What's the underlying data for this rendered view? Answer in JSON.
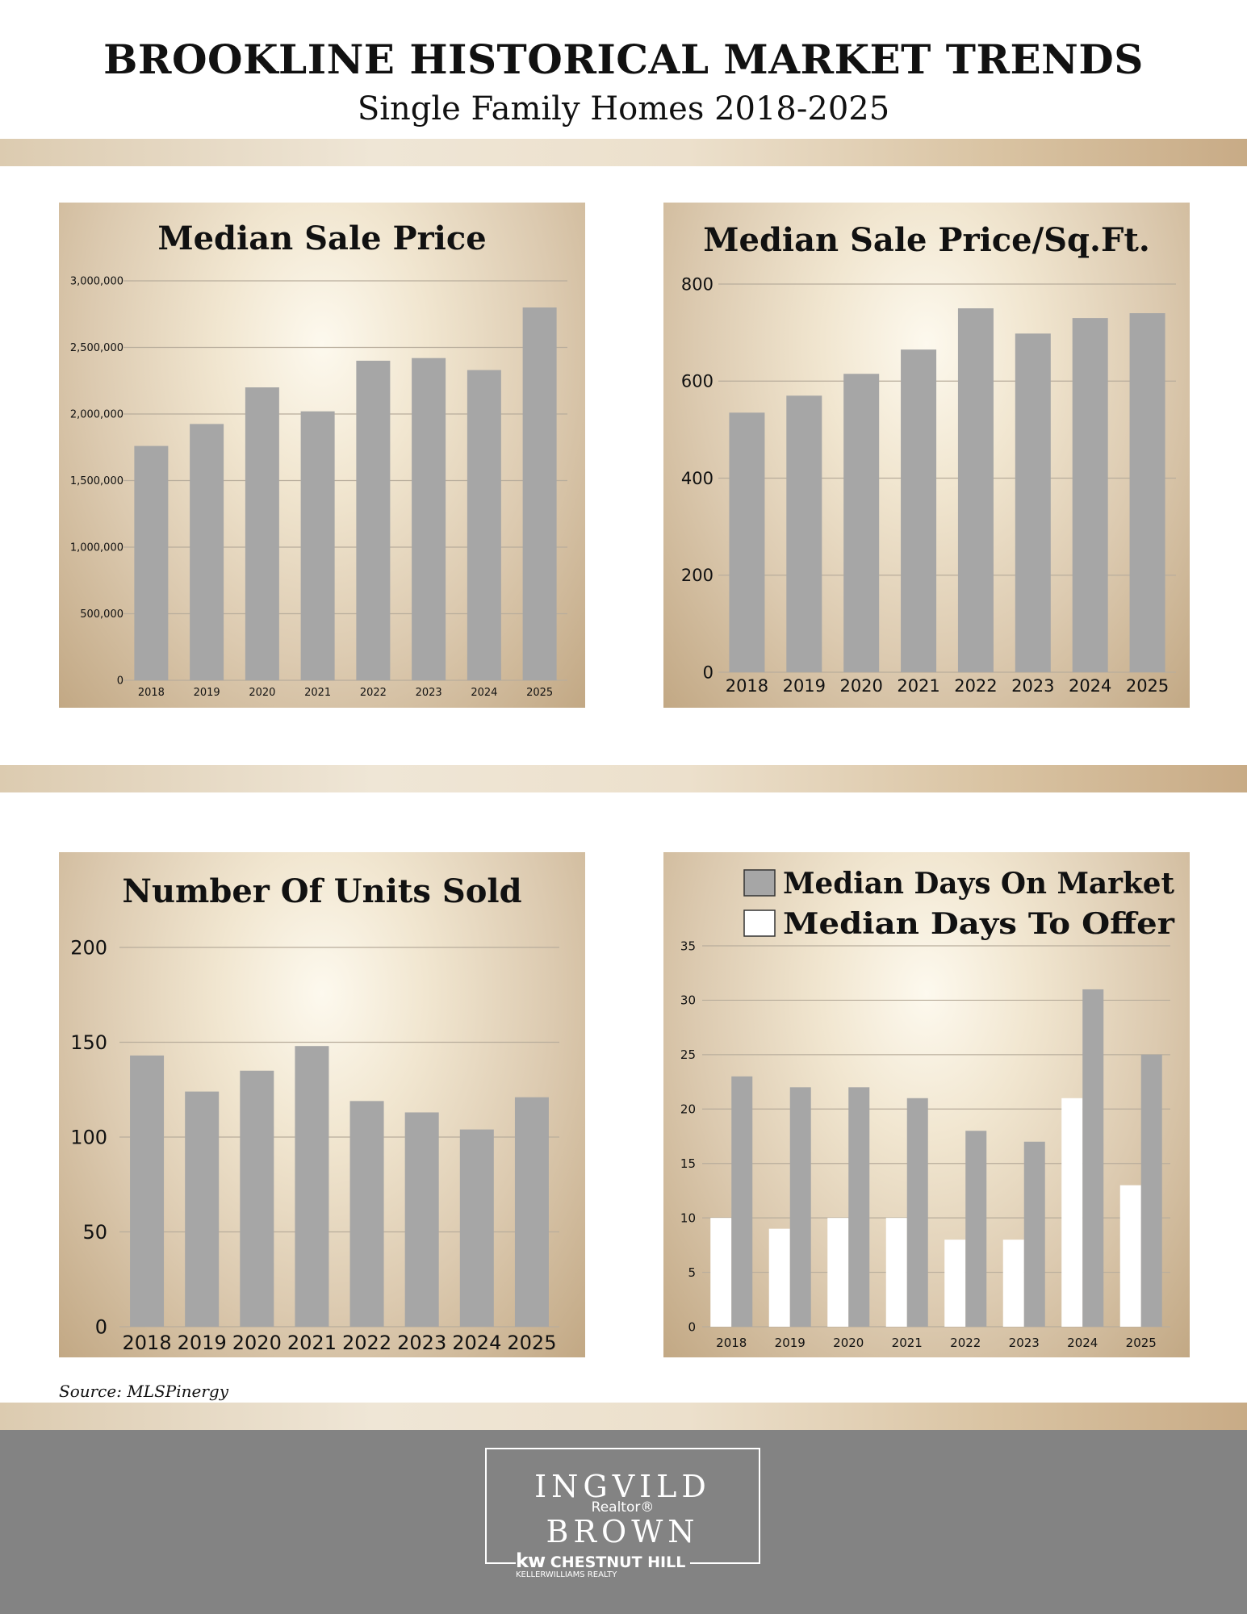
{
  "header": {
    "title": "BROOKLINE HISTORICAL MARKET TRENDS",
    "subtitle": "Single Family Homes 2018-2025"
  },
  "source": "Source:  MLSPinergy",
  "branding": {
    "name_line1": "INGVILD",
    "role": "Realtor®",
    "name_line2": "BROWN",
    "office": "CHESTNUT HILL",
    "office_prefix": "kw",
    "company": "KELLERWILLIAMS REALTY"
  },
  "colors": {
    "bar_gray": "#a6a6a6",
    "bar_white": "#ffffff",
    "grid": "#b8ad9c",
    "footer": "#838383"
  },
  "chart_data": [
    {
      "id": "median-sale-price",
      "type": "bar",
      "title": "Median Sale Price",
      "categories": [
        "2018",
        "2019",
        "2020",
        "2021",
        "2022",
        "2023",
        "2024",
        "2025"
      ],
      "series": [
        {
          "values": [
            1760000,
            1925000,
            2200000,
            2020000,
            2400000,
            2420000,
            2330000,
            2800000
          ],
          "color": "#a6a6a6"
        }
      ],
      "ylim": [
        0,
        3000000
      ],
      "yticks": [
        "0",
        "500,000",
        "1,000,000",
        "1,500,000",
        "2,000,000",
        "2,500,000",
        "3,000,000"
      ],
      "ytick_values": [
        0,
        500000,
        1000000,
        1500000,
        2000000,
        2500000,
        3000000
      ],
      "grid": true,
      "legend": []
    },
    {
      "id": "median-price-sqft",
      "type": "bar",
      "title": "Median Sale Price/Sq.Ft.",
      "categories": [
        "2018",
        "2019",
        "2020",
        "2021",
        "2022",
        "2023",
        "2024",
        "2025"
      ],
      "series": [
        {
          "values": [
            535,
            570,
            615,
            665,
            750,
            698,
            730,
            740
          ],
          "color": "#a6a6a6"
        }
      ],
      "ylim": [
        0,
        800
      ],
      "yticks": [
        "0",
        "200",
        "400",
        "600",
        "800"
      ],
      "ytick_values": [
        0,
        200,
        400,
        600,
        800
      ],
      "grid": true,
      "legend": []
    },
    {
      "id": "units-sold",
      "type": "bar",
      "title": "Number Of Units Sold",
      "categories": [
        "2018",
        "2019",
        "2020",
        "2021",
        "2022",
        "2023",
        "2024",
        "2025"
      ],
      "series": [
        {
          "values": [
            143,
            124,
            135,
            148,
            119,
            113,
            104,
            121
          ],
          "color": "#a6a6a6"
        }
      ],
      "ylim": [
        0,
        200
      ],
      "yticks": [
        "0",
        "50",
        "100",
        "150",
        "200"
      ],
      "ytick_values": [
        0,
        50,
        100,
        150,
        200
      ],
      "grid": true,
      "legend": []
    },
    {
      "id": "days-on-market",
      "type": "bar",
      "title": "",
      "categories": [
        "2018",
        "2019",
        "2020",
        "2021",
        "2022",
        "2023",
        "2024",
        "2025"
      ],
      "series": [
        {
          "name": "Median Days To Offer",
          "values": [
            10,
            9,
            10,
            10,
            8,
            8,
            21,
            13
          ],
          "color": "#ffffff"
        },
        {
          "name": "Median Days On Market",
          "values": [
            23,
            22,
            22,
            21,
            18,
            17,
            31,
            25
          ],
          "color": "#a6a6a6"
        }
      ],
      "ylim": [
        0,
        35
      ],
      "yticks": [
        "0",
        "5",
        "10",
        "15",
        "20",
        "25",
        "30",
        "35"
      ],
      "ytick_values": [
        0,
        5,
        10,
        15,
        20,
        25,
        30,
        35
      ],
      "grid": true,
      "legend": [
        "Median Days On Market",
        "Median Days To Offer"
      ],
      "legend_position": "top-right"
    }
  ]
}
